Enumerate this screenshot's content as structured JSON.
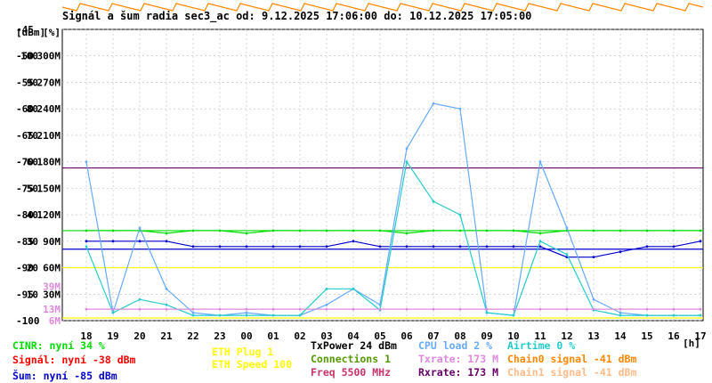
{
  "title": "Signál a šum radia sec3_ac od: 9.12.2025 17:06:00 do: 10.12.2025 17:05:00",
  "colors": {
    "cinr": "#00dd00",
    "signal": "#ff0000",
    "noise": "#0000cc",
    "cpu": "#66aaff",
    "airtime": "#22cccc",
    "txrate": "#dd88dd",
    "rxrate": "#660066",
    "chain0": "#ff8800",
    "chain1": "#ffbb88",
    "eth": "#ffff00",
    "connections": "#559900",
    "freq": "#cc3366",
    "txpower": "#000000"
  },
  "legend": {
    "cinr": "CINR: nyní 34 %",
    "signal": "Signál: nyní -38 dBm",
    "noise": "Šum: nyní -85 dBm",
    "eth_plug": "ETH Plug 1",
    "eth_speed": "ETH Speed 100",
    "txpower": "TxPower 24 dBm",
    "connections": "Connections 1",
    "freq": "Freq 5500 MHz",
    "cpu": "CPU load 2 %",
    "txrate": "Txrate: 173 M",
    "rxrate": "Rxrate: 173 M",
    "airtime": "Airtime 0 %",
    "chain0": "Chain0 signal -41 dBm",
    "chain1": "Chain1 signal -41 dBm"
  },
  "chart_data": {
    "type": "line",
    "title": "Signál a šum radia sec3_ac od: 9.12.2025 17:06:00 do: 10.12.2025 17:05:00",
    "unit_labels": [
      "[dBm]",
      "[%]"
    ],
    "x_unit": "[h]",
    "x_ticks": [
      "18",
      "19",
      "20",
      "21",
      "22",
      "23",
      "00",
      "01",
      "02",
      "03",
      "04",
      "05",
      "06",
      "07",
      "08",
      "09",
      "10",
      "11",
      "12",
      "13",
      "14",
      "15",
      "16",
      "17"
    ],
    "y_ticks": [
      {
        "dbm": "-45",
        "pct": "",
        "rate": ""
      },
      {
        "dbm": "-50",
        "pct": "100",
        "rate": "300M"
      },
      {
        "dbm": "-55",
        "pct": "90",
        "rate": "270M"
      },
      {
        "dbm": "-60",
        "pct": "80",
        "rate": "240M"
      },
      {
        "dbm": "-65",
        "pct": "70",
        "rate": "210M"
      },
      {
        "dbm": "-70",
        "pct": "60",
        "rate": "180M"
      },
      {
        "dbm": "-75",
        "pct": "50",
        "rate": "150M"
      },
      {
        "dbm": "-80",
        "pct": "40",
        "rate": "120M"
      },
      {
        "dbm": "-85",
        "pct": "30",
        "rate": "90M"
      },
      {
        "dbm": "-90",
        "pct": "20",
        "rate": "60M"
      },
      {
        "dbm": "-95",
        "pct": "10",
        "rate": "30M"
      },
      {
        "dbm": "-100",
        "pct": "",
        "rate": "6M"
      }
    ],
    "extra_tick_labels": [
      {
        "text": "39M",
        "pct": 13,
        "color": "#dd88dd"
      },
      {
        "text": "13M",
        "pct": 4.3,
        "color": "#dd88dd"
      }
    ],
    "ylim_pct": [
      0,
      110
    ],
    "ylim_dbm": [
      -100,
      -45
    ],
    "series": [
      {
        "key": "cinr",
        "color": "#00dd00",
        "unit": "pct",
        "values": [
          34,
          34,
          34,
          33,
          34,
          34,
          33,
          34,
          34,
          34,
          34,
          34,
          33,
          34,
          34,
          34,
          34,
          33,
          34,
          34,
          34,
          34,
          34,
          34
        ]
      },
      {
        "key": "noise",
        "color": "#0000cc",
        "unit": "dbm",
        "values": [
          -85,
          -85,
          -85,
          -85,
          -86,
          -86,
          -86,
          -86,
          -86,
          -86,
          -85,
          -86,
          -86,
          -86,
          -86,
          -86,
          -86,
          -86,
          -88,
          -88,
          -87,
          -86,
          -86,
          -85
        ]
      },
      {
        "key": "cpu",
        "color": "#66aaff",
        "unit": "pct",
        "values": [
          60,
          3,
          35,
          12,
          3,
          2,
          3,
          2,
          2,
          6,
          12,
          6,
          65,
          82,
          80,
          3,
          2,
          60,
          35,
          8,
          3,
          2,
          2,
          2
        ]
      },
      {
        "key": "airtime",
        "color": "#22cccc",
        "unit": "pct",
        "values": [
          28,
          3,
          8,
          6,
          2,
          2,
          2,
          2,
          2,
          12,
          12,
          4,
          60,
          45,
          40,
          3,
          2,
          30,
          25,
          4,
          2,
          2,
          2,
          2
        ]
      },
      {
        "key": "txrate",
        "color": "#dd88dd",
        "unit": "rate",
        "values": [
          13,
          13,
          13,
          13,
          13,
          13,
          13,
          13,
          13,
          13,
          13,
          13,
          13,
          13,
          13,
          13,
          13,
          13,
          13,
          13,
          13,
          13,
          13,
          13
        ]
      }
    ],
    "reference_lines": [
      {
        "key": "rxrate",
        "color": "#660066",
        "value_rate": 173
      },
      {
        "key": "noise_floor",
        "color": "#0000cc",
        "value_dbm": -86.5
      },
      {
        "key": "cinr_ref",
        "color": "#00dd00",
        "value_pct": 34
      },
      {
        "key": "eth_speed",
        "color": "#ffff00",
        "value_pct": 20
      },
      {
        "key": "eth_plug",
        "color": "#ffff00",
        "value_pct": 1
      }
    ],
    "grid": true
  }
}
